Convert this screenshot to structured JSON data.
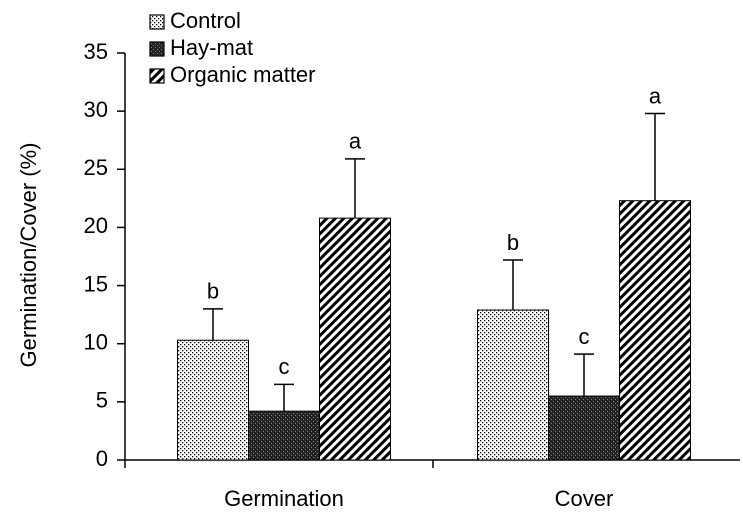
{
  "chart_data": {
    "type": "bar",
    "y_label": "Germination/Cover (%)",
    "categories": [
      "Germination",
      "Cover"
    ],
    "series": [
      {
        "name": "Control",
        "pattern": "dots",
        "color": "#000000",
        "values": [
          10.3,
          12.9
        ],
        "errors": [
          2.7,
          4.3
        ],
        "annotations": [
          "b",
          "b"
        ]
      },
      {
        "name": "Hay-mat",
        "pattern": "crosshatch",
        "color": "#000000",
        "values": [
          4.2,
          5.5
        ],
        "errors": [
          2.3,
          3.6
        ],
        "annotations": [
          "c",
          "c"
        ]
      },
      {
        "name": "Organic matter",
        "pattern": "diagonal",
        "color": "#000000",
        "values": [
          20.8,
          22.3
        ],
        "errors": [
          5.1,
          7.5
        ],
        "annotations": [
          "a",
          "a"
        ]
      }
    ],
    "ylim": [
      0,
      35
    ],
    "yticks": [
      0,
      5,
      10,
      15,
      20,
      25,
      30,
      35
    ],
    "legend": "top-left"
  }
}
